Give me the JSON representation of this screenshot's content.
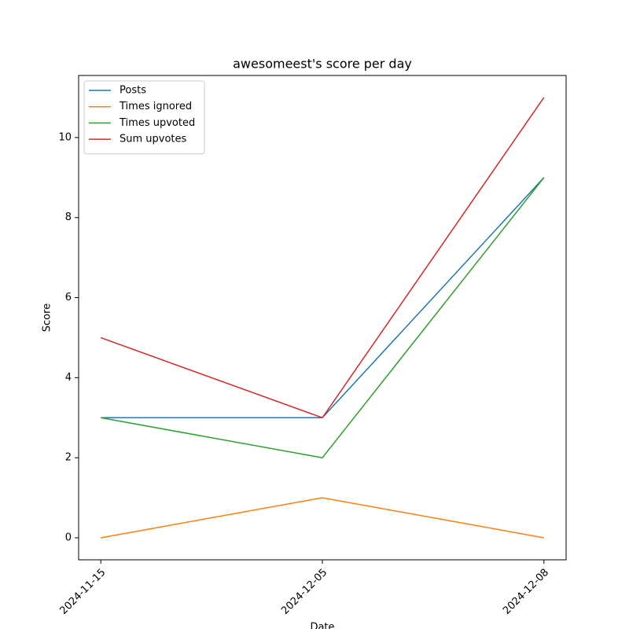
{
  "chart_data": {
    "type": "line",
    "title": "awesomeest's score per day",
    "x_label": "Date",
    "y_label": "Score",
    "categories": [
      "2024-11-15",
      "2024-12-05",
      "2024-12-08"
    ],
    "series": [
      {
        "name": "Posts",
        "color": "#1f77b4",
        "values": [
          3,
          3,
          9
        ]
      },
      {
        "name": "Times ignored",
        "color": "#ff7f0e",
        "values": [
          0,
          1,
          0
        ]
      },
      {
        "name": "Times upvoted",
        "color": "#2ca02c",
        "values": [
          3,
          2,
          9
        ]
      },
      {
        "name": "Sum upvotes",
        "color": "#d62728",
        "values": [
          5,
          3,
          11
        ]
      }
    ],
    "ylim": [
      -0.55,
      11.55
    ],
    "yticks": [
      0,
      2,
      4,
      6,
      8,
      10
    ],
    "legend": "upper left",
    "grid": false
  }
}
